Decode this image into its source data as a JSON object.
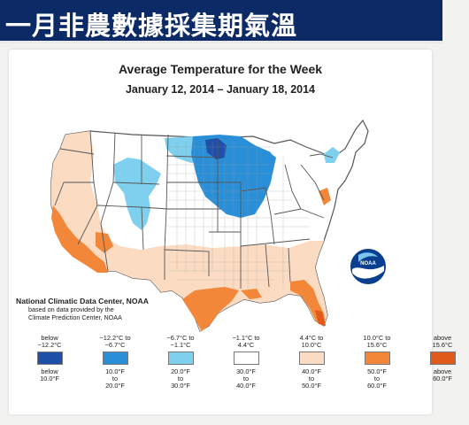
{
  "banner": {
    "title": "一月非農數據採集期氣溫"
  },
  "map": {
    "title": "Average Temperature for the Week",
    "subtitle": "January 12, 2014 – January 18, 2014",
    "credit": {
      "line1": "National Climatic Data Center, NOAA",
      "line2": "based on data provided by the",
      "line3": "Climate Prediction Center, NOAA"
    },
    "logo_text": "NOAA",
    "colors": {
      "below_-12": "#1f4fa6",
      "-12_to_-7": "#2b8fd8",
      "-7_to_-1": "#7fd0ee",
      "-1_to_4": "#ffffff",
      "4_to_10": "#fbdcc3",
      "10_to_16": "#f2873a",
      "above_16": "#e05a1c",
      "outline": "#555555",
      "county_lines": "#9a9a9a"
    }
  },
  "legend": [
    {
      "celsius": "below\n−12.2°C",
      "fahrenheit": "below\n10.0°F",
      "color": "#1f4fa6"
    },
    {
      "celsius": "−12.2°C to\n−6.7°C",
      "fahrenheit": "10.0°F\nto\n20.0°F",
      "color": "#2b8fd8"
    },
    {
      "celsius": "−6.7°C to\n−1.1°C",
      "fahrenheit": "20.0°F\nto\n30.0°F",
      "color": "#7fd0ee"
    },
    {
      "celsius": "−1.1°C to\n4.4°C",
      "fahrenheit": "30.0°F\nto\n40.0°F",
      "color": "#ffffff"
    },
    {
      "celsius": "4.4°C to\n10.0°C",
      "fahrenheit": "40.0°F\nto\n50.0°F",
      "color": "#fbdcc3"
    },
    {
      "celsius": "10.0°C to\n15.6°C",
      "fahrenheit": "50.0°F\nto\n60.0°F",
      "color": "#f2873a"
    },
    {
      "celsius": "above\n15.6°C",
      "fahrenheit": "above\n60.0°F",
      "color": "#e05a1c"
    }
  ]
}
